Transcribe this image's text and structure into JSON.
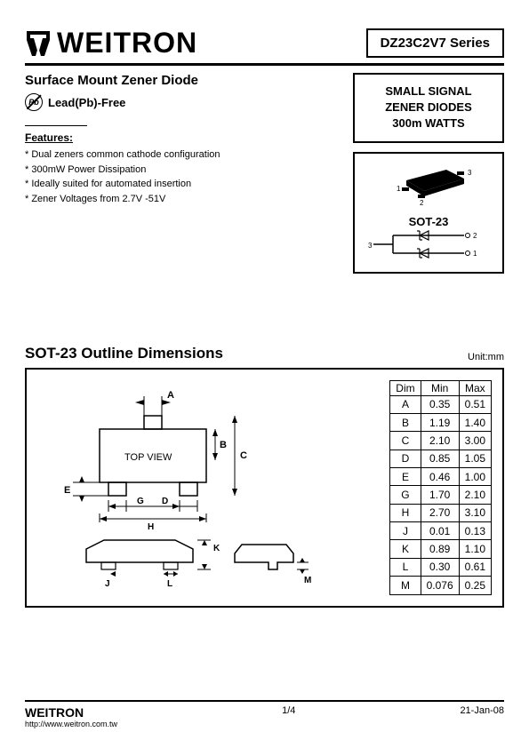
{
  "brand": "WEITRON",
  "series": "DZ23C2V7 Series",
  "subtitle": "Surface Mount Zener Diode",
  "leadfree": "Lead(Pb)-Free",
  "pb_label": "Pb",
  "features_title": "Features:",
  "features": [
    "* Dual zeners common cathode configuration",
    "* 300mW Power Dissipation",
    "* Ideally suited for automated insertion",
    "* Zener Voltages from 2.7V -51V"
  ],
  "small_signal": {
    "line1": "SMALL SIGNAL",
    "line2": "ZENER DIODES",
    "line3": "300m WATTS"
  },
  "package_label": "SOT-23",
  "pin_labels": {
    "p1": "1",
    "p2": "2",
    "p3": "3"
  },
  "outline_title": "SOT-23 Outline Dimensions",
  "unit_label": "Unit:mm",
  "top_view_label": "TOP  VIEW",
  "dim_labels": {
    "A": "A",
    "B": "B",
    "C": "C",
    "D": "D",
    "E": "E",
    "G": "G",
    "H": "H",
    "J": "J",
    "K": "K",
    "L": "L",
    "M": "M"
  },
  "dim_table": {
    "headers": [
      "Dim",
      "Min",
      "Max"
    ],
    "rows": [
      [
        "A",
        "0.35",
        "0.51"
      ],
      [
        "B",
        "1.19",
        "1.40"
      ],
      [
        "C",
        "2.10",
        "3.00"
      ],
      [
        "D",
        "0.85",
        "1.05"
      ],
      [
        "E",
        "0.46",
        "1.00"
      ],
      [
        "G",
        "1.70",
        "2.10"
      ],
      [
        "H",
        "2.70",
        "3.10"
      ],
      [
        "J",
        "0.01",
        "0.13"
      ],
      [
        "K",
        "0.89",
        "1.10"
      ],
      [
        "L",
        "0.30",
        "0.61"
      ],
      [
        "M",
        "0.076",
        "0.25"
      ]
    ]
  },
  "footer": {
    "brand": "WEITRON",
    "url": "http://www.weitron.com.tw",
    "page": "1/4",
    "date": "21-Jan-08"
  },
  "colors": {
    "text": "#000000",
    "bg": "#ffffff",
    "border": "#000000"
  }
}
